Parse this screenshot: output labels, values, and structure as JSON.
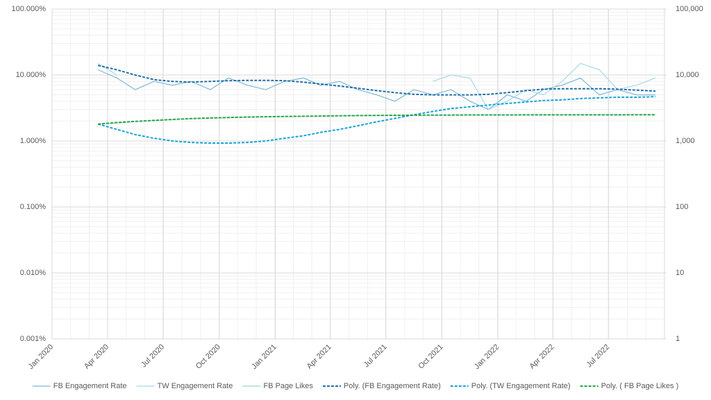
{
  "chart_data": {
    "type": "line",
    "x": [
      "Mar 2020",
      "Apr 2020",
      "May 2020",
      "Jun 2020",
      "Jul 2020",
      "Aug 2020",
      "Sep 2020",
      "Oct 2020",
      "Nov 2020",
      "Dec 2020",
      "Jan 2021",
      "Feb 2021",
      "Mar 2021",
      "Apr 2021",
      "May 2021",
      "Jun 2021",
      "Jul 2021",
      "Aug 2021",
      "Sep 2021",
      "Oct 2021",
      "Nov 2021",
      "Dec 2021",
      "Jan 2022",
      "Feb 2022",
      "Mar 2022",
      "Apr 2022",
      "May 2022",
      "Jun 2022",
      "Jul 2022",
      "Aug 2022",
      "Sep 2022"
    ],
    "xlim": [
      "Jan 2020",
      "Oct 2022"
    ],
    "xticks": [
      "Jan 2020",
      "Apr 2020",
      "Jul 2020",
      "Oct 2020",
      "Jan 2021",
      "Apr 2021",
      "Jul 2021",
      "Oct 2021",
      "Jan 2022",
      "Apr 2022",
      "Jul 2022"
    ],
    "ylim": [
      0.001,
      100
    ],
    "yticks": [
      {
        "value": 0.001,
        "label": "0.001%"
      },
      {
        "value": 0.01,
        "label": "0.010%"
      },
      {
        "value": 0.1,
        "label": "0.100%"
      },
      {
        "value": 1,
        "label": "1.000%"
      },
      {
        "value": 10,
        "label": "10.000%"
      },
      {
        "value": 100,
        "label": "100.000%"
      }
    ],
    "y2lim": [
      1,
      100000
    ],
    "y2ticks": [
      1,
      10,
      100,
      {
        "value": 1000,
        "label": "1,000"
      },
      {
        "value": 10000,
        "label": "10,000"
      },
      {
        "value": 100000,
        "label": "100,000"
      }
    ],
    "log_scale": true,
    "grid": true,
    "minor_grid": true,
    "legend": "bottom",
    "series": [
      {
        "name": "FB Engagement Rate",
        "color": "#7ab8d9",
        "dash": false,
        "values": [
          12,
          9,
          6,
          8,
          7,
          8,
          6,
          9,
          7,
          6,
          8,
          9,
          7,
          8,
          6,
          5,
          4,
          6,
          5,
          6,
          4,
          3,
          5,
          4,
          6,
          7,
          9,
          5,
          6,
          5,
          5
        ]
      },
      {
        "name": "TW Engagement Rate",
        "color": "#a8d8ea",
        "dash": false,
        "values": [
          15,
          10,
          null,
          null,
          null,
          null,
          null,
          null,
          null,
          null,
          null,
          null,
          null,
          null,
          null,
          null,
          null,
          null,
          8,
          10,
          9,
          3,
          4,
          6,
          5,
          8,
          15,
          12,
          6,
          7,
          9
        ]
      },
      {
        "name": "FB Page Likes",
        "color": "#9fd4c9",
        "dash": false,
        "axis": "y2",
        "values": [
          1800,
          1880,
          1970,
          2040,
          2110,
          2170,
          2220,
          2260,
          2300,
          2320,
          2340,
          2360,
          2380,
          2400,
          2420,
          2430,
          2440,
          2450,
          2460,
          2470,
          2470,
          2480,
          2480,
          2480,
          2490,
          2490,
          2490,
          2490,
          2490,
          2500,
          2500
        ]
      },
      {
        "name": "Poly. (FB Engagement Rate)",
        "color": "#1f6fa8",
        "dash": true,
        "values": [
          14,
          12,
          10,
          8.5,
          8,
          7.8,
          8,
          8.2,
          8.3,
          8.3,
          8.2,
          7.8,
          7.3,
          6.8,
          6.3,
          5.8,
          5.4,
          5.1,
          5,
          5,
          5,
          5.1,
          5.4,
          5.8,
          6.1,
          6.2,
          6.2,
          6.2,
          6.1,
          5.9,
          5.7
        ]
      },
      {
        "name": "Poly. (TW Engagement Rate)",
        "color": "#17a2d8",
        "dash": true,
        "values": [
          1.8,
          1.5,
          1.25,
          1.1,
          1,
          0.95,
          0.93,
          0.93,
          0.95,
          1,
          1.1,
          1.2,
          1.35,
          1.5,
          1.7,
          1.95,
          2.2,
          2.5,
          2.8,
          3.1,
          3.3,
          3.5,
          3.7,
          3.9,
          4.1,
          4.2,
          4.4,
          4.5,
          4.6,
          4.6,
          4.7
        ]
      },
      {
        "name": "Poly. ( FB Page Likes )",
        "color": "#27a348",
        "dash": true,
        "axis": "y2",
        "values": [
          1800,
          1900,
          1980,
          2050,
          2120,
          2180,
          2230,
          2270,
          2300,
          2330,
          2350,
          2370,
          2390,
          2410,
          2430,
          2440,
          2450,
          2460,
          2470,
          2470,
          2480,
          2480,
          2480,
          2490,
          2490,
          2490,
          2490,
          2490,
          2490,
          2500,
          2500
        ]
      }
    ]
  }
}
